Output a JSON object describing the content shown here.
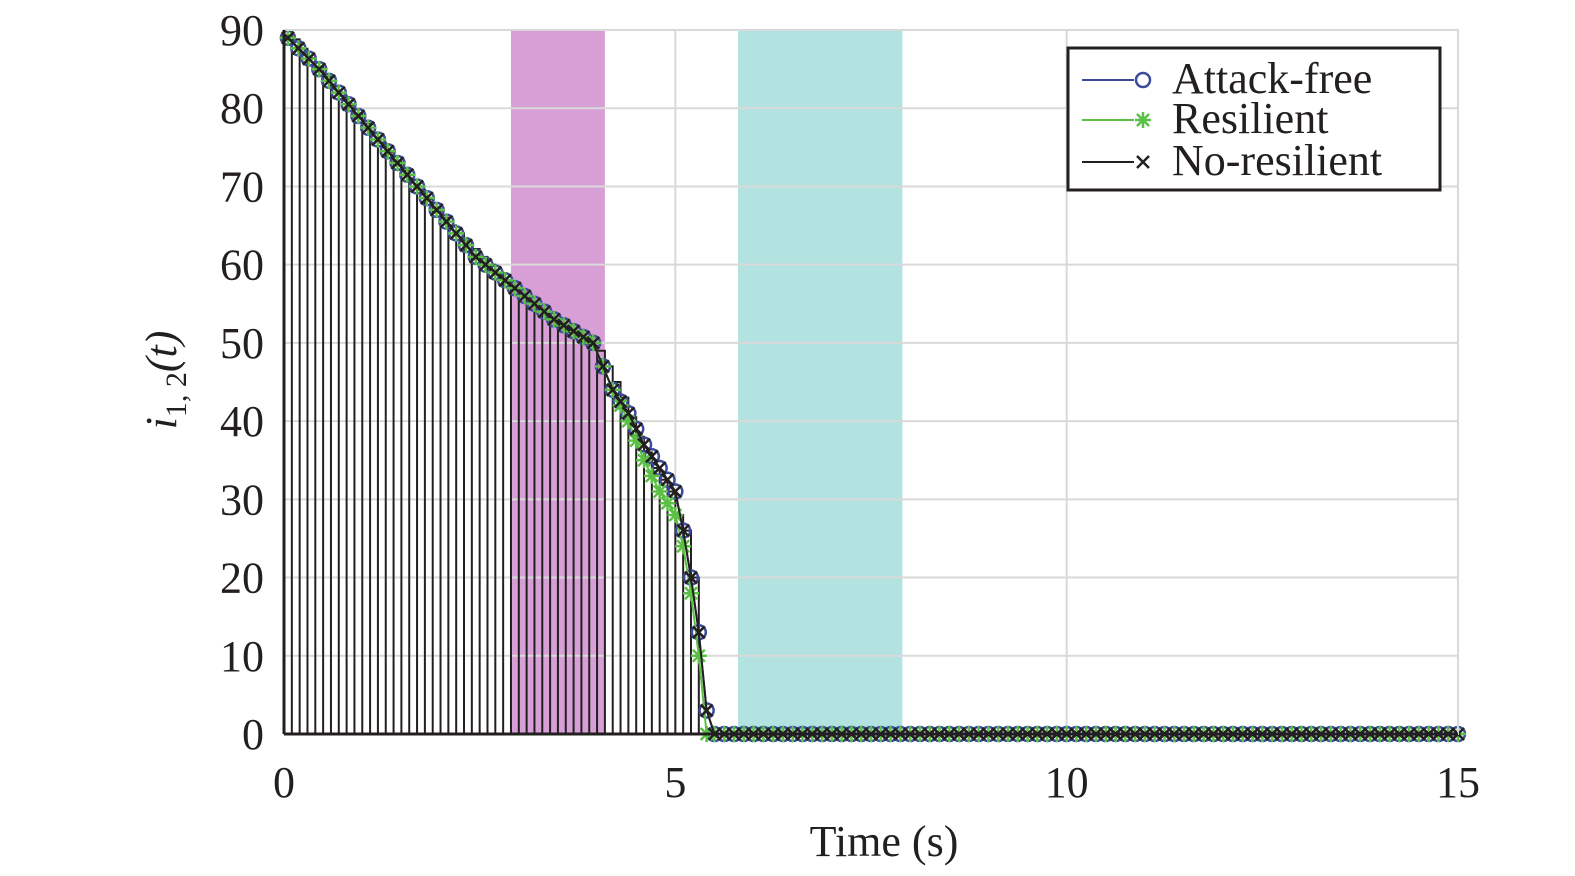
{
  "chart_data": {
    "type": "line",
    "xlabel": "Time (s)",
    "ylabel": {
      "base": "i",
      "sub": "1, 2",
      "arg": "(t)"
    },
    "xlim": [
      0,
      15
    ],
    "ylim": [
      0,
      90
    ],
    "xticks": [
      "0",
      "5",
      "10",
      "15"
    ],
    "yticks": [
      "0",
      "10",
      "20",
      "30",
      "40",
      "50",
      "60",
      "70",
      "80",
      "90"
    ],
    "grid": true,
    "legend_position": "top-right",
    "shaded_regions": [
      {
        "x0": 2.9,
        "x1": 4.1,
        "color": "#d79fd6"
      },
      {
        "x0": 5.8,
        "x1": 7.9,
        "color": "#b2e3e0"
      }
    ],
    "series": [
      {
        "name": "Attack-free",
        "color": "#3b4a9b",
        "marker": "circle",
        "x": [
          0.05,
          0.45,
          0.95,
          1.45,
          1.95,
          2.45,
          2.95,
          3.45,
          3.95,
          4.2,
          4.4,
          4.6,
          4.8,
          5.0,
          5.1,
          5.2,
          5.3,
          5.4,
          5.5,
          6.0,
          7.0,
          8.0,
          9.0,
          10.0,
          11.0,
          12.0,
          13.0,
          14.0,
          15.0
        ],
        "y": [
          89,
          85,
          79,
          73,
          67,
          61,
          57,
          53,
          50,
          44,
          41,
          37,
          34,
          31,
          26,
          20,
          13,
          3,
          0,
          0,
          0,
          0,
          0,
          0,
          0,
          0,
          0,
          0,
          0
        ]
      },
      {
        "name": "Resilient",
        "color": "#5bbf45",
        "marker": "asterisk",
        "x": [
          0.05,
          0.45,
          0.95,
          1.45,
          1.95,
          2.45,
          2.95,
          3.45,
          3.95,
          4.2,
          4.4,
          4.6,
          4.8,
          5.0,
          5.1,
          5.2,
          5.3,
          5.4,
          5.5,
          6.0,
          7.0,
          8.0,
          9.0,
          10.0,
          11.0,
          12.0,
          13.0,
          14.0,
          15.0
        ],
        "y": [
          89,
          85,
          79,
          73,
          67,
          61,
          57,
          53,
          50,
          44,
          40,
          35,
          31,
          28,
          24,
          18,
          10,
          0,
          0,
          0,
          0,
          0,
          0,
          0,
          0,
          0,
          0,
          0,
          0
        ]
      },
      {
        "name": "No-resilient",
        "color": "#231f20",
        "marker": "x",
        "x": [
          0.05,
          0.45,
          0.95,
          1.45,
          1.95,
          2.45,
          2.95,
          3.45,
          3.95,
          4.2,
          4.4,
          4.6,
          4.8,
          5.0,
          5.1,
          5.2,
          5.3,
          5.4,
          5.5,
          6.0,
          7.0,
          8.0,
          9.0,
          10.0,
          11.0,
          12.0,
          13.0,
          14.0,
          15.0
        ],
        "y": [
          89,
          85,
          79,
          73,
          67,
          61,
          57,
          53,
          50,
          44,
          41,
          37,
          34,
          31,
          26,
          20,
          13,
          3,
          0,
          0,
          0,
          0,
          0,
          0,
          0,
          0,
          0,
          0,
          0
        ],
        "stems": {
          "x_start": 0.0,
          "x_end": 5.3,
          "x_step": 0.1,
          "envelope_x": [
            0,
            0.5,
            1,
            1.5,
            2,
            2.5,
            3,
            3.5,
            4,
            4.1,
            4.3,
            4.5,
            4.7,
            4.9,
            5.0,
            5.1,
            5.2,
            5.3
          ],
          "envelope_y": [
            90,
            84,
            78,
            72,
            66,
            61,
            56,
            52,
            49,
            47,
            43,
            38,
            34,
            31,
            28,
            26,
            20,
            13
          ]
        }
      }
    ]
  }
}
